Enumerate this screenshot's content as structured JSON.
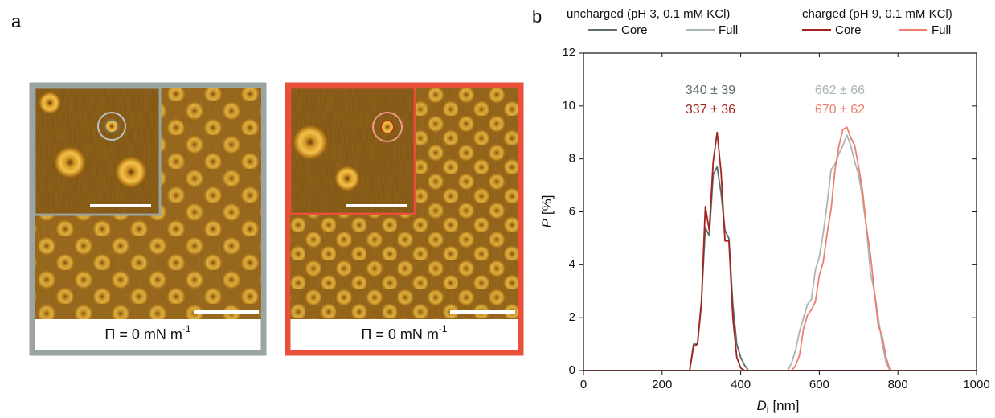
{
  "panel_labels": [
    "a",
    "b"
  ],
  "images": [
    {
      "caption": "Π = 0 mN m",
      "caption_sup": "-1"
    },
    {
      "caption": "Π = 0 mN m",
      "caption_sup": "-1"
    }
  ],
  "chart_data": {
    "type": "line",
    "xlabel": {
      "symbol": "D",
      "subscript": "i",
      "unit": "[nm]"
    },
    "ylabel": {
      "symbol": "P",
      "unit": "[%]"
    },
    "xlim": [
      0,
      1000
    ],
    "xticks": [
      0,
      200,
      400,
      600,
      800,
      1000
    ],
    "ylim": [
      0,
      12
    ],
    "yticks": [
      0,
      2,
      4,
      6,
      8,
      10,
      12
    ],
    "legend_groups": [
      "uncharged (pH 3, 0.1 mM KCl)",
      "charged (pH 9, 0.1 mM KCl)"
    ],
    "annotations": [
      {
        "text": "340 ± 39",
        "color": "#5f6e6c"
      },
      {
        "text": "337 ± 36",
        "color": "#a3231d"
      },
      {
        "text": "662 ± 66",
        "color": "#aab6b4"
      },
      {
        "text": "670 ± 62",
        "color": "#ee7f6e"
      }
    ],
    "x": [
      0,
      10,
      20,
      30,
      40,
      50,
      60,
      70,
      80,
      90,
      100,
      110,
      120,
      130,
      140,
      150,
      160,
      170,
      180,
      190,
      200,
      210,
      220,
      230,
      240,
      250,
      260,
      270,
      280,
      290,
      300,
      310,
      320,
      330,
      340,
      350,
      360,
      370,
      380,
      390,
      400,
      410,
      420,
      430,
      440,
      450,
      460,
      470,
      480,
      490,
      500,
      510,
      520,
      530,
      540,
      550,
      560,
      570,
      580,
      590,
      600,
      610,
      620,
      630,
      640,
      650,
      660,
      670,
      680,
      690,
      700,
      710,
      720,
      730,
      740,
      750,
      760,
      770,
      780,
      790,
      800,
      810,
      820,
      830,
      840,
      850,
      860,
      870,
      880,
      890,
      900,
      910,
      920,
      930,
      940,
      950,
      960,
      970,
      980,
      990,
      1000
    ],
    "series": [
      {
        "name": "Core",
        "color": "#5f6e6c",
        "values": [
          0,
          0,
          0,
          0,
          0,
          0,
          0,
          0,
          0,
          0,
          0,
          0,
          0,
          0,
          0,
          0,
          0,
          0,
          0,
          0,
          0,
          0,
          0,
          0,
          0,
          0,
          0,
          0,
          1.0,
          1.0,
          2.6,
          5.4,
          5.1,
          7.4,
          7.7,
          6.7,
          5.3,
          5.0,
          2.5,
          1.0,
          0.5,
          0.2,
          0,
          0,
          0,
          0,
          0,
          0,
          0,
          0,
          0,
          0,
          0,
          0,
          0,
          0,
          0,
          0,
          0,
          0,
          0,
          0,
          0,
          0,
          0,
          0,
          0,
          0,
          0,
          0,
          0,
          0,
          0,
          0,
          0,
          0,
          0,
          0,
          0,
          0,
          0,
          0,
          0,
          0,
          0,
          0,
          0,
          0,
          0,
          0,
          0,
          0,
          0,
          0,
          0,
          0,
          0,
          0,
          0,
          0,
          0
        ]
      },
      {
        "name": "Full",
        "color": "#aab6b4",
        "values": [
          0,
          0,
          0,
          0,
          0,
          0,
          0,
          0,
          0,
          0,
          0,
          0,
          0,
          0,
          0,
          0,
          0,
          0,
          0,
          0,
          0,
          0,
          0,
          0,
          0,
          0,
          0,
          0,
          0,
          0,
          0,
          0,
          0,
          0,
          0,
          0,
          0,
          0,
          0,
          0,
          0,
          0,
          0,
          0,
          0,
          0,
          0,
          0,
          0,
          0,
          0,
          0,
          0,
          0.3,
          0.8,
          1.5,
          2.0,
          2.5,
          2.7,
          3.8,
          4.3,
          5.2,
          6.3,
          7.6,
          7.8,
          8.2,
          8.5,
          8.9,
          8.5,
          7.9,
          7.4,
          6.5,
          5.4,
          3.7,
          3.0,
          2.0,
          1.0,
          0.3,
          0,
          0,
          0,
          0,
          0,
          0,
          0,
          0,
          0,
          0,
          0,
          0,
          0,
          0,
          0,
          0,
          0,
          0,
          0,
          0,
          0,
          0,
          0
        ]
      },
      {
        "name": "Core",
        "color": "#a3231d",
        "values": [
          0,
          0,
          0,
          0,
          0,
          0,
          0,
          0,
          0,
          0,
          0,
          0,
          0,
          0,
          0,
          0,
          0,
          0,
          0,
          0,
          0,
          0,
          0,
          0,
          0,
          0,
          0,
          0,
          0.9,
          1.0,
          2.5,
          6.2,
          5.3,
          7.9,
          9.0,
          7.5,
          4.9,
          4.9,
          2.0,
          0.5,
          0.1,
          0,
          0,
          0,
          0,
          0,
          0,
          0,
          0,
          0,
          0,
          0,
          0,
          0,
          0,
          0,
          0,
          0,
          0,
          0,
          0,
          0,
          0,
          0,
          0,
          0,
          0,
          0,
          0,
          0,
          0,
          0,
          0,
          0,
          0,
          0,
          0,
          0,
          0,
          0,
          0,
          0,
          0,
          0,
          0,
          0,
          0,
          0,
          0,
          0,
          0,
          0,
          0,
          0,
          0,
          0,
          0,
          0,
          0,
          0,
          0
        ]
      },
      {
        "name": "Full",
        "color": "#ee7f6e",
        "values": [
          0,
          0,
          0,
          0,
          0,
          0,
          0,
          0,
          0,
          0,
          0,
          0,
          0,
          0,
          0,
          0,
          0,
          0,
          0,
          0,
          0,
          0,
          0,
          0,
          0,
          0,
          0,
          0,
          0,
          0,
          0,
          0,
          0,
          0,
          0,
          0,
          0,
          0,
          0,
          0,
          0,
          0,
          0,
          0,
          0,
          0,
          0,
          0,
          0,
          0,
          0,
          0,
          0,
          0,
          0.2,
          0.6,
          1.6,
          2.1,
          2.3,
          2.6,
          3.6,
          4.1,
          5.2,
          6.1,
          7.6,
          8.5,
          9.1,
          9.2,
          8.8,
          8.5,
          7.7,
          6.8,
          5.4,
          4.4,
          3.0,
          1.7,
          1.3,
          0.5,
          0,
          0,
          0,
          0,
          0,
          0,
          0,
          0,
          0,
          0,
          0,
          0,
          0,
          0,
          0,
          0,
          0,
          0,
          0,
          0,
          0,
          0,
          0
        ]
      }
    ]
  }
}
